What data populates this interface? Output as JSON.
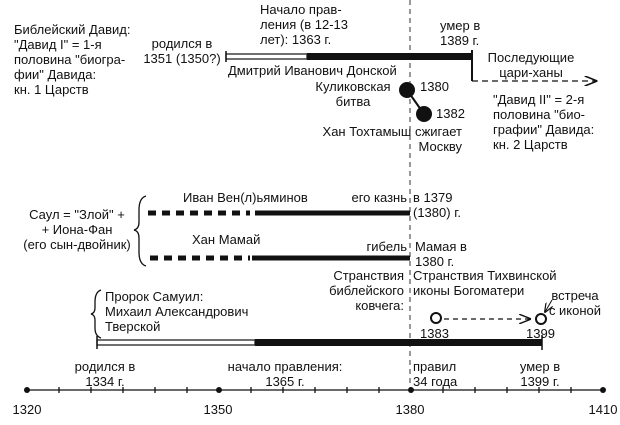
{
  "david1": "Библейский Давид:\n\"Давид I\" = 1-я\nполовина \"биогра-\nфии\" Давида:\nкн. 1 Царств",
  "dmitry": {
    "born": "родился в\n1351 (1350?)",
    "reign_start": "Начало прав-\nления (в 12-13\nлет): 1363 г.",
    "died": "умер в\n1389 г.",
    "name": "Дмитрий Иванович Донской",
    "successors": "Последующие\nцари-ханы",
    "kulikovo": "Куликовская\nбитва",
    "kulikovo_year": "1380",
    "tokhtamysh_year": "1382",
    "tokhtamysh": "Хан Тохтамыш сжигает\nМоскву",
    "david2": "\"Давид II\" = 2-я\nполовина \"био-\nграфии\" Давида:\nкн. 2 Царств"
  },
  "saul": {
    "label": "Саул = \"Злой\" +\n+ Иона-Фан\n(его сын-двойник)",
    "ivan_name": "Иван Вен(л)ьяминов",
    "ivan_exec": "его казнь",
    "ivan_year": "в 1379\n(1380) г.",
    "mamai_name": "Хан Мамай",
    "mamai_death": "гибель",
    "mamai_year": "Мамая в\n1380 г."
  },
  "ark": {
    "bible": "Странствия\nбиблейского\nковчега:",
    "icon": "Странствия Тихвинской\nиконы Богоматери",
    "meeting": "встреча\nс иконой",
    "y1": "1383",
    "y2": "1399"
  },
  "samuel": {
    "label": "Пророк Самуил:\nМихаил Александрович\nТверской",
    "born": "родился в\n1334 г.",
    "reign_start": "начало правления:\n1365 г.",
    "ruled": "правил\n34 года",
    "died": "умер в\n1399 г."
  },
  "axis": {
    "ticks": [
      "1320",
      "1350",
      "1380",
      "1410"
    ]
  }
}
